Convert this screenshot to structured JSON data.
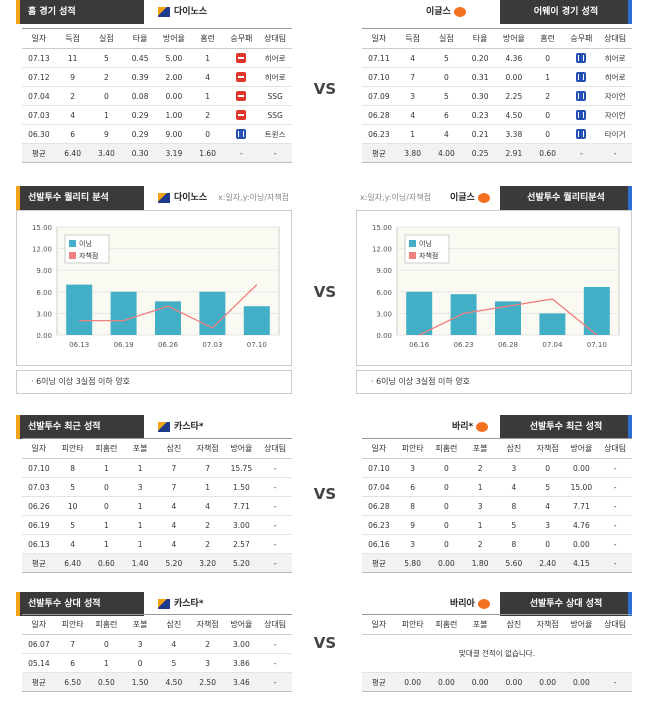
{
  "sections": {
    "home_record": {
      "left_title": "홈 경기 성적",
      "left_team": "다이노스",
      "right_title": "어웨이 경기 성적",
      "right_team": "이글스"
    },
    "quality": {
      "left_title": "선발투수 퀄리티 분석",
      "left_team": "다이노스",
      "left_sub": "x:일자,y:이닝/자책점",
      "right_title": "선발투수 퀄리티분석",
      "right_team": "이글스",
      "right_sub": "x:일자,y:이닝/자책점",
      "left_note": "· 6이닝 이상 3실점 이하 양호",
      "right_note": "· 6이닝 이상 3실점 이하 양호"
    },
    "recent": {
      "left_title": "선발투수 최근 성적",
      "left_team": "카스타*",
      "right_title": "선발투수 최근 성적",
      "right_team": "바리*"
    },
    "versus": {
      "left_title": "선발투수 상대 성적",
      "left_team": "카스타*",
      "right_title": "선발투수 상대 성적",
      "right_team": "바리아",
      "right_empty": "맞대결 전적이 없습니다."
    }
  },
  "vs_label": "VS",
  "team_headers": [
    "일자",
    "득점",
    "실점",
    "타율",
    "방어율",
    "홈런",
    "승무패",
    "상대팀"
  ],
  "pitcher_headers": [
    "일자",
    "피안타",
    "피홈런",
    "포볼",
    "삼진",
    "자책점",
    "방어율",
    "상대팀"
  ],
  "home_rows": [
    [
      "07.13",
      "11",
      "5",
      "0.45",
      "5.00",
      "1",
      "L",
      "히어로"
    ],
    [
      "07.12",
      "9",
      "2",
      "0.39",
      "2.00",
      "4",
      "L",
      "히어로"
    ],
    [
      "07.04",
      "2",
      "0",
      "0.08",
      "0.00",
      "1",
      "L",
      "SSG"
    ],
    [
      "07.03",
      "4",
      "1",
      "0.29",
      "1.00",
      "2",
      "L",
      "SSG"
    ],
    [
      "06.30",
      "6",
      "9",
      "0.29",
      "9.00",
      "0",
      "W",
      "트윈스"
    ]
  ],
  "home_avg": [
    "평균",
    "6.40",
    "3.40",
    "0.30",
    "3.19",
    "1.60",
    "-",
    "-"
  ],
  "away_rows": [
    [
      "07.11",
      "4",
      "5",
      "0.20",
      "4.36",
      "0",
      "W",
      "히어로"
    ],
    [
      "07.10",
      "7",
      "0",
      "0.31",
      "0.00",
      "1",
      "W",
      "히어로"
    ],
    [
      "07.09",
      "3",
      "5",
      "0.30",
      "2.25",
      "2",
      "W",
      "자이언"
    ],
    [
      "06.28",
      "4",
      "6",
      "0.23",
      "4.50",
      "0",
      "W",
      "자이언"
    ],
    [
      "06.23",
      "1",
      "4",
      "0.21",
      "3.38",
      "0",
      "W",
      "타이거"
    ]
  ],
  "away_avg": [
    "평균",
    "3.80",
    "4.00",
    "0.25",
    "2.91",
    "0.60",
    "-",
    "-"
  ],
  "recent_left_rows": [
    [
      "07.10",
      "8",
      "1",
      "1",
      "7",
      "7",
      "15.75",
      "-"
    ],
    [
      "07.03",
      "5",
      "0",
      "3",
      "7",
      "1",
      "1.50",
      "-"
    ],
    [
      "06.26",
      "10",
      "0",
      "1",
      "4",
      "4",
      "7.71",
      "-"
    ],
    [
      "06.19",
      "5",
      "1",
      "1",
      "4",
      "2",
      "3.00",
      "-"
    ],
    [
      "06.13",
      "4",
      "1",
      "1",
      "4",
      "2",
      "2.57",
      "-"
    ]
  ],
  "recent_left_avg": [
    "평균",
    "6.40",
    "0.60",
    "1.40",
    "5.20",
    "3.20",
    "5.20",
    "-"
  ],
  "recent_right_rows": [
    [
      "07.10",
      "3",
      "0",
      "2",
      "3",
      "0",
      "0.00",
      "-"
    ],
    [
      "07.04",
      "6",
      "0",
      "1",
      "4",
      "5",
      "15.00",
      "-"
    ],
    [
      "06.28",
      "8",
      "0",
      "3",
      "8",
      "4",
      "7.71",
      "-"
    ],
    [
      "06.23",
      "9",
      "0",
      "1",
      "5",
      "3",
      "4.76",
      "-"
    ],
    [
      "06.16",
      "3",
      "0",
      "2",
      "8",
      "0",
      "0.00",
      "-"
    ]
  ],
  "recent_right_avg": [
    "평균",
    "5.80",
    "0.00",
    "1.80",
    "5.60",
    "2.40",
    "4.15",
    "-"
  ],
  "versus_left_rows": [
    [
      "06.07",
      "7",
      "0",
      "3",
      "4",
      "2",
      "3.00",
      "-"
    ],
    [
      "05.14",
      "6",
      "1",
      "0",
      "5",
      "3",
      "3.86",
      "-"
    ]
  ],
  "versus_left_avg": [
    "평균",
    "6.50",
    "0.50",
    "1.50",
    "4.50",
    "2.50",
    "3.46",
    "-"
  ],
  "versus_right_avg": [
    "평균",
    "0.00",
    "0.00",
    "0.00",
    "0.00",
    "0.00",
    "0.00",
    "-"
  ],
  "colors": {
    "bar": "#42afc6",
    "line": "#f07f7f",
    "tab": "#3a3a3a",
    "accent_left": "#f3a318",
    "accent_right": "#2c6fd0"
  },
  "chart_data": [
    {
      "type": "bar",
      "categories": [
        "06.13",
        "06.19",
        "06.26",
        "07.03",
        "07.10"
      ],
      "ylim": [
        0,
        15
      ],
      "yticks": [
        "0.00",
        "3.00",
        "6.00",
        "9.00",
        "12.00",
        "15.00"
      ],
      "series": [
        {
          "name": "이닝",
          "type": "bar",
          "values": [
            7.0,
            6.0,
            4.67,
            6.0,
            4.0
          ]
        },
        {
          "name": "자책점",
          "type": "line",
          "values": [
            2,
            2,
            4,
            1,
            7
          ]
        }
      ]
    },
    {
      "type": "bar",
      "categories": [
        "06.16",
        "06.23",
        "06.28",
        "07.04",
        "07.10"
      ],
      "ylim": [
        0,
        15
      ],
      "yticks": [
        "0.00",
        "3.00",
        "6.00",
        "9.00",
        "12.00",
        "15.00"
      ],
      "series": [
        {
          "name": "이닝",
          "type": "bar",
          "values": [
            6.0,
            5.67,
            4.67,
            3.0,
            6.67
          ]
        },
        {
          "name": "자책점",
          "type": "line",
          "values": [
            0,
            3,
            4,
            5,
            0
          ]
        }
      ]
    }
  ]
}
